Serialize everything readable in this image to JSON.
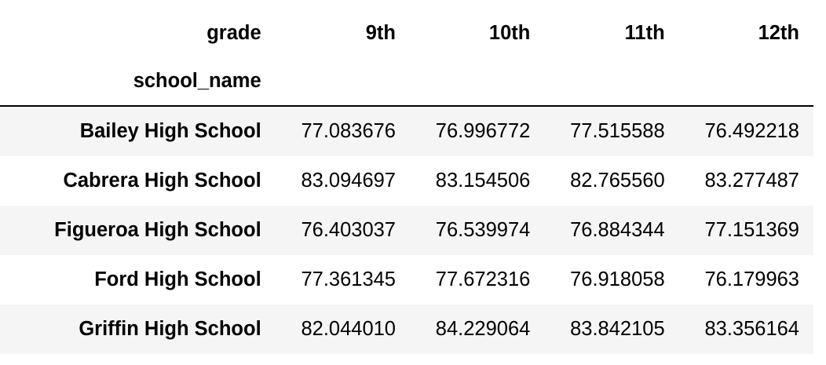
{
  "table": {
    "columns_level_name": "grade",
    "index_name": "school_name",
    "columns": [
      "9th",
      "10th",
      "11th",
      "12th"
    ],
    "rows": [
      {
        "index": "Bailey High School",
        "values": [
          "77.083676",
          "76.996772",
          "77.515588",
          "76.492218"
        ]
      },
      {
        "index": "Cabrera High School",
        "values": [
          "83.094697",
          "83.154506",
          "82.765560",
          "83.277487"
        ]
      },
      {
        "index": "Figueroa High School",
        "values": [
          "76.403037",
          "76.539974",
          "76.884344",
          "77.151369"
        ]
      },
      {
        "index": "Ford High School",
        "values": [
          "77.361345",
          "77.672316",
          "76.918058",
          "76.179963"
        ]
      },
      {
        "index": "Griffin High School",
        "values": [
          "82.044010",
          "84.229064",
          "83.842105",
          "83.356164"
        ]
      }
    ],
    "colors": {
      "header_rule": "#000000",
      "striped_row": "#f5f5f5",
      "text": "#000000"
    }
  }
}
